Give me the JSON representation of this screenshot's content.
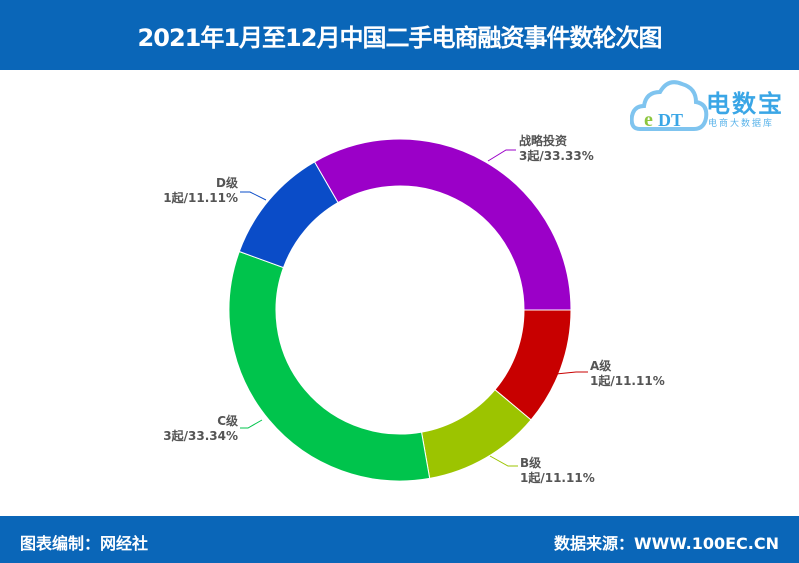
{
  "header": {
    "title": "2021年1月至12月中国二手电商融资事件数轮次图"
  },
  "footer": {
    "left": "图表编制：网经社",
    "right": "数据来源：WWW.100EC.CN"
  },
  "logo": {
    "name": "电数宝",
    "tagline": "电商大数据库",
    "mark": "eDT"
  },
  "chart_data": {
    "type": "pie",
    "donut": true,
    "title": "2021年1月至12月中国二手电商融资事件数轮次图",
    "slices": [
      {
        "name": "战略投资",
        "value": 3,
        "percent": "33.33%",
        "label": "3起/33.33%",
        "color": "#9b00c8"
      },
      {
        "name": "A级",
        "value": 1,
        "percent": "11.11%",
        "label": "1起/11.11%",
        "color": "#c80000"
      },
      {
        "name": "B级",
        "value": 1,
        "percent": "11.11%",
        "label": "1起/11.11%",
        "color": "#9cc400"
      },
      {
        "name": "C级",
        "value": 3,
        "percent": "33.34%",
        "label": "3起/33.34%",
        "color": "#00c44c"
      },
      {
        "name": "D级",
        "value": 1,
        "percent": "11.11%",
        "label": "1起/11.11%",
        "color": "#0a4cc8"
      }
    ]
  }
}
